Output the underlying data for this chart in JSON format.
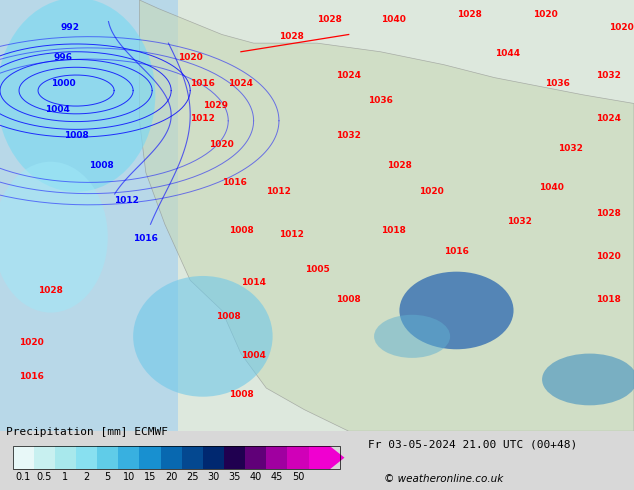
{
  "title_left": "Precipitation [mm] ECMWF",
  "title_right": "Fr 03-05-2024 21.00 UTC (00+48)",
  "copyright": "© weatheronline.co.uk",
  "colorbar_labels": [
    "0.1",
    "0.5",
    "1",
    "2",
    "5",
    "10",
    "15",
    "20",
    "25",
    "30",
    "35",
    "40",
    "45",
    "50"
  ],
  "colorbar_colors": [
    "#e0f8f8",
    "#c0f0f0",
    "#a0e8e8",
    "#80e0f0",
    "#60d8f8",
    "#40c8f0",
    "#20b0e8",
    "#1090d0",
    "#0070b8",
    "#0050a0",
    "#003080",
    "#400060",
    "#800080",
    "#c000a0",
    "#e000c0"
  ],
  "bg_color": "#d8d8d8",
  "map_bg": "#e8e8e8",
  "fig_width": 6.34,
  "fig_height": 4.9,
  "dpi": 100
}
